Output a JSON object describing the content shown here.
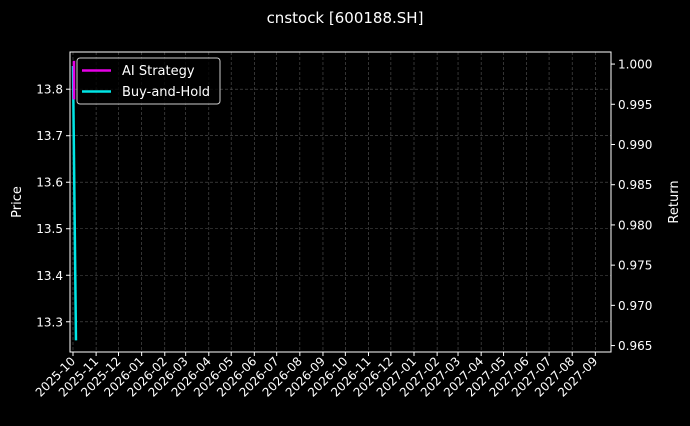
{
  "chart_data": {
    "type": "line",
    "title": "cnstock [600188.SH]",
    "ylabel_left": "Price",
    "ylabel_right": "Return",
    "xlabel": "",
    "x_ticks": [
      "2025-10",
      "2025-11",
      "2025-12",
      "2026-01",
      "2026-02",
      "2026-03",
      "2026-04",
      "2026-05",
      "2026-06",
      "2026-07",
      "2026-08",
      "2026-09",
      "2026-10",
      "2026-11",
      "2026-12",
      "2027-01",
      "2027-02",
      "2027-03",
      "2027-04",
      "2027-05",
      "2027-06",
      "2027-07",
      "2027-08",
      "2027-09"
    ],
    "xlim": [
      "2025-09-27",
      "2027-09-22"
    ],
    "ylim_left": [
      13.235,
      13.88
    ],
    "ylim_right": [
      0.9642,
      1.0015
    ],
    "y_ticks_left": [
      "13.3",
      "13.4",
      "13.5",
      "13.6",
      "13.7",
      "13.8"
    ],
    "y_ticks_right": [
      "0.965",
      "0.970",
      "0.975",
      "0.980",
      "0.985",
      "0.990",
      "0.995",
      "1.000"
    ],
    "grid": true,
    "legend_position": "top-left",
    "series": [
      {
        "name": "AI Strategy",
        "axis": "right",
        "color": "#e600e6",
        "x": [
          "2025-10-01",
          "2025-10-01"
        ],
        "values": [
          1.0004,
          0.9956
        ]
      },
      {
        "name": "Buy-and-Hold",
        "axis": "left",
        "color": "#00e5e5",
        "x": [
          "2025-10-01",
          "2025-10-05"
        ],
        "values": [
          13.85,
          13.26
        ]
      }
    ]
  }
}
